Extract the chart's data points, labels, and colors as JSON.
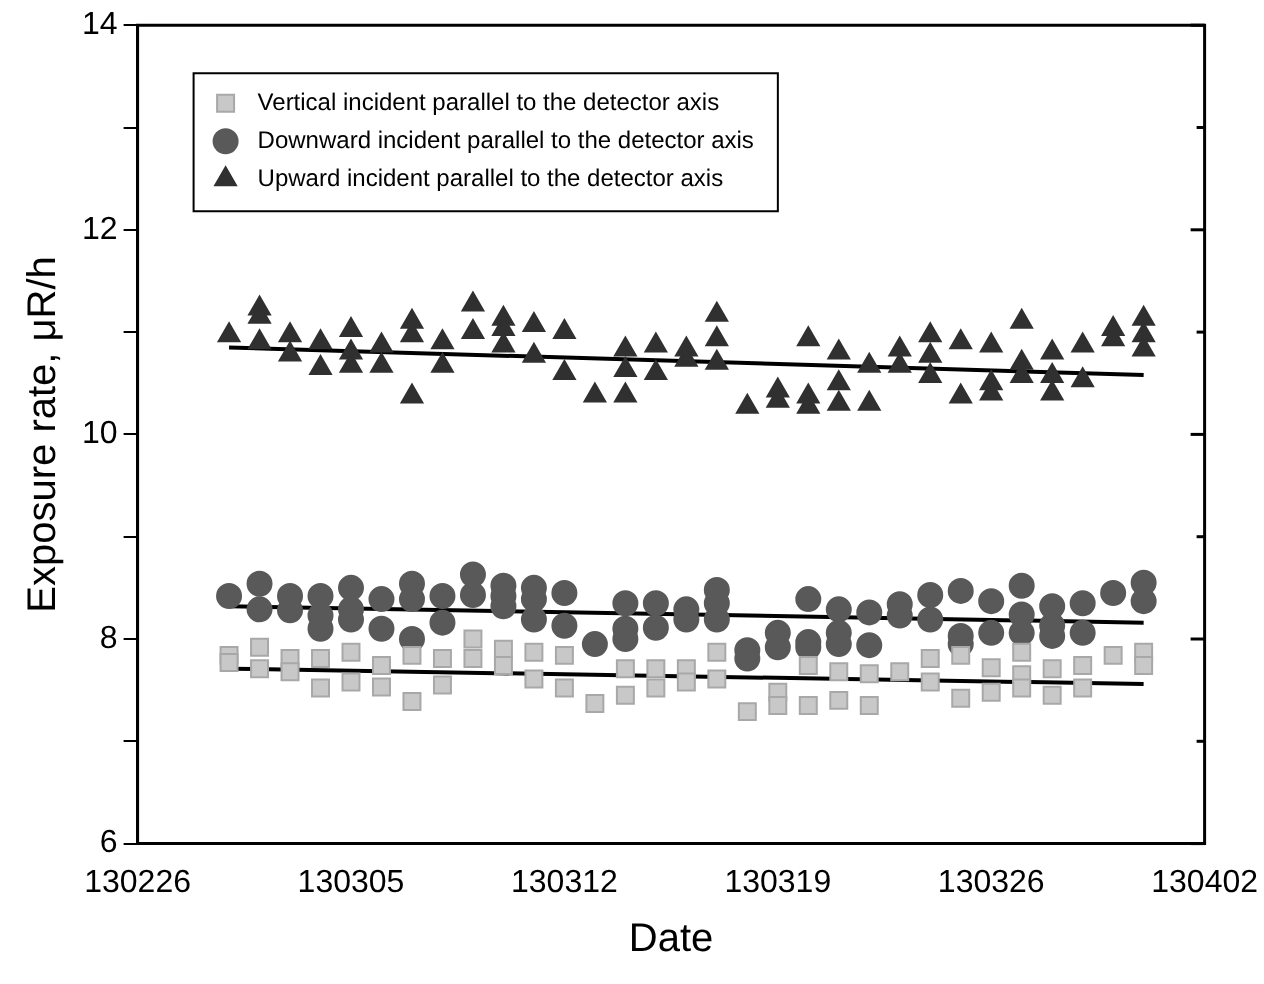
{
  "chart_data": {
    "type": "scatter",
    "xlabel": "Date",
    "ylabel": "Exposure rate, μR/h",
    "xlim": [
      "--02-26",
      "--04-02"
    ],
    "xticks": [
      {
        "value": "--02-26",
        "label": "130226"
      },
      {
        "value": "--03-05",
        "label": "130305"
      },
      {
        "value": "--03-12",
        "label": "130312"
      },
      {
        "value": "--03-19",
        "label": "130319"
      },
      {
        "value": "--03-26",
        "label": "130326"
      },
      {
        "value": "--04-02",
        "label": "130402"
      }
    ],
    "ylim": [
      6,
      14
    ],
    "yticks": [
      6,
      {
        "value": 7,
        "label": null
      },
      8,
      {
        "value": 9,
        "label": null
      },
      10,
      {
        "value": 11,
        "label": null
      },
      12,
      {
        "value": 13,
        "label": null
      },
      14
    ],
    "legend": "top left",
    "series": [
      {
        "name": "Vertical incident parallel to the detector axis",
        "marker": "square",
        "color": "#c8c8c8",
        "x": [
          "--03-01",
          "--03-01",
          "--03-02",
          "--03-02",
          "--03-03",
          "--03-03",
          "--03-04",
          "--03-04",
          "--03-05",
          "--03-05",
          "--03-06",
          "--03-06",
          "--03-07",
          "--03-07",
          "--03-08",
          "--03-08",
          "--03-09",
          "--03-09",
          "--03-10",
          "--03-10",
          "--03-11",
          "--03-11",
          "--03-12",
          "--03-12",
          "--03-13",
          "--03-14",
          "--03-14",
          "--03-15",
          "--03-15",
          "--03-16",
          "--03-16",
          "--03-17",
          "--03-17",
          "--03-18",
          "--03-19",
          "--03-19",
          "--03-20",
          "--03-20",
          "--03-21",
          "--03-21",
          "--03-22",
          "--03-22",
          "--03-23",
          "--03-24",
          "--03-24",
          "--03-25",
          "--03-25",
          "--03-26",
          "--03-26",
          "--03-27",
          "--03-27",
          "--03-27",
          "--03-28",
          "--03-28",
          "--03-29",
          "--03-29",
          "--03-30",
          "--03-31",
          "--03-31"
        ],
        "values": [
          7.84,
          7.77,
          7.92,
          7.71,
          7.81,
          7.68,
          7.81,
          7.52,
          7.87,
          7.58,
          7.74,
          7.53,
          7.84,
          7.39,
          7.81,
          7.55,
          8.0,
          7.81,
          7.9,
          7.74,
          7.87,
          7.61,
          7.84,
          7.52,
          7.37,
          7.71,
          7.45,
          7.71,
          7.52,
          7.71,
          7.58,
          7.87,
          7.61,
          7.29,
          7.48,
          7.35,
          7.74,
          7.35,
          7.68,
          7.4,
          7.66,
          7.35,
          7.68,
          7.81,
          7.58,
          7.84,
          7.42,
          7.72,
          7.48,
          7.87,
          7.65,
          7.52,
          7.71,
          7.45,
          7.74,
          7.52,
          7.84,
          7.87,
          7.74
        ]
      },
      {
        "name": "Downward incident parallel to the detector axis",
        "marker": "circle",
        "color": "#595959",
        "x": [
          "--03-01",
          "--03-02",
          "--03-02",
          "--03-03",
          "--03-03",
          "--03-04",
          "--03-04",
          "--03-04",
          "--03-05",
          "--03-05",
          "--03-05",
          "--03-06",
          "--03-06",
          "--03-07",
          "--03-07",
          "--03-07",
          "--03-08",
          "--03-08",
          "--03-09",
          "--03-09",
          "--03-10",
          "--03-10",
          "--03-10",
          "--03-11",
          "--03-11",
          "--03-11",
          "--03-12",
          "--03-12",
          "--03-13",
          "--03-14",
          "--03-14",
          "--03-14",
          "--03-15",
          "--03-15",
          "--03-16",
          "--03-16",
          "--03-17",
          "--03-17",
          "--03-17",
          "--03-18",
          "--03-18",
          "--03-19",
          "--03-19",
          "--03-20",
          "--03-20",
          "--03-20",
          "--03-21",
          "--03-21",
          "--03-21",
          "--03-22",
          "--03-22",
          "--03-23",
          "--03-23",
          "--03-24",
          "--03-24",
          "--03-25",
          "--03-25",
          "--03-25",
          "--03-26",
          "--03-26",
          "--03-27",
          "--03-27",
          "--03-27",
          "--03-28",
          "--03-28",
          "--03-28",
          "--03-29",
          "--03-29",
          "--03-30",
          "--03-31",
          "--03-31"
        ],
        "values": [
          8.42,
          8.54,
          8.29,
          8.42,
          8.28,
          8.42,
          8.23,
          8.1,
          8.5,
          8.29,
          8.19,
          8.39,
          8.1,
          8.54,
          8.39,
          8.0,
          8.42,
          8.16,
          8.63,
          8.43,
          8.52,
          8.42,
          8.32,
          8.5,
          8.39,
          8.19,
          8.45,
          8.13,
          7.95,
          8.35,
          8.1,
          8.0,
          8.35,
          8.11,
          8.29,
          8.19,
          8.48,
          8.35,
          8.19,
          7.89,
          7.81,
          8.06,
          7.92,
          8.39,
          7.97,
          7.92,
          8.29,
          8.06,
          7.95,
          8.26,
          7.94,
          8.34,
          8.23,
          8.43,
          8.19,
          8.47,
          8.03,
          7.95,
          8.37,
          8.06,
          8.52,
          8.24,
          8.06,
          8.32,
          8.13,
          8.03,
          8.35,
          8.06,
          8.45,
          8.55,
          8.37
        ]
      },
      {
        "name": "Upward incident parallel to the detector axis",
        "marker": "triangle",
        "color": "#303030",
        "x": [
          "--03-01",
          "--03-02",
          "--03-02",
          "--03-02",
          "--03-03",
          "--03-03",
          "--03-04",
          "--03-04",
          "--03-05",
          "--03-05",
          "--03-05",
          "--03-06",
          "--03-06",
          "--03-07",
          "--03-07",
          "--03-07",
          "--03-08",
          "--03-08",
          "--03-09",
          "--03-09",
          "--03-10",
          "--03-10",
          "--03-10",
          "--03-11",
          "--03-11",
          "--03-12",
          "--03-12",
          "--03-13",
          "--03-14",
          "--03-14",
          "--03-14",
          "--03-15",
          "--03-15",
          "--03-16",
          "--03-16",
          "--03-17",
          "--03-17",
          "--03-17",
          "--03-18",
          "--03-19",
          "--03-19",
          "--03-20",
          "--03-20",
          "--03-20",
          "--03-21",
          "--03-21",
          "--03-21",
          "--03-22",
          "--03-22",
          "--03-23",
          "--03-23",
          "--03-24",
          "--03-24",
          "--03-24",
          "--03-25",
          "--03-25",
          "--03-26",
          "--03-26",
          "--03-26",
          "--03-27",
          "--03-27",
          "--03-27",
          "--03-28",
          "--03-28",
          "--03-28",
          "--03-29",
          "--03-29",
          "--03-30",
          "--03-30",
          "--03-31",
          "--03-31",
          "--03-31"
        ],
        "values": [
          10.97,
          11.23,
          11.15,
          10.9,
          10.97,
          10.78,
          10.9,
          10.65,
          11.02,
          10.8,
          10.67,
          10.87,
          10.67,
          11.1,
          10.97,
          10.37,
          10.9,
          10.67,
          11.27,
          11.0,
          11.13,
          11.03,
          10.87,
          11.07,
          10.77,
          11.0,
          10.6,
          10.38,
          10.83,
          10.63,
          10.38,
          10.87,
          10.6,
          10.83,
          10.73,
          11.17,
          10.93,
          10.7,
          10.27,
          10.43,
          10.33,
          10.93,
          10.37,
          10.27,
          10.8,
          10.5,
          10.3,
          10.67,
          10.3,
          10.83,
          10.67,
          10.97,
          10.77,
          10.57,
          10.9,
          10.37,
          10.87,
          10.5,
          10.4,
          11.1,
          10.7,
          10.57,
          10.8,
          10.57,
          10.4,
          10.87,
          10.53,
          11.03,
          10.93,
          11.13,
          10.97,
          10.83
        ]
      },
      {
        "type": "line",
        "marker": "none",
        "color": "#000000",
        "x": [
          "--03-01",
          "--03-31"
        ],
        "values": [
          7.71,
          7.56
        ]
      },
      {
        "type": "line",
        "marker": "none",
        "color": "#000000",
        "x": [
          "--03-01",
          "--03-31"
        ],
        "values": [
          8.32,
          8.16
        ]
      },
      {
        "type": "line",
        "marker": "none",
        "color": "#000000",
        "x": [
          "--03-01",
          "--03-31"
        ],
        "values": [
          10.85,
          10.58
        ]
      }
    ]
  }
}
